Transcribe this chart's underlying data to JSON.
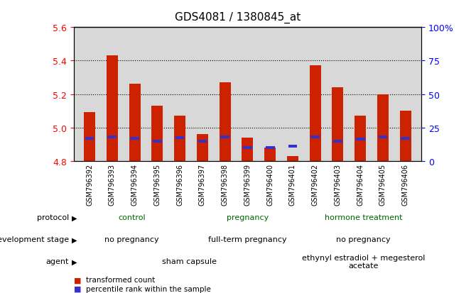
{
  "title": "GDS4081 / 1380845_at",
  "samples": [
    "GSM796392",
    "GSM796393",
    "GSM796394",
    "GSM796395",
    "GSM796396",
    "GSM796397",
    "GSM796398",
    "GSM796399",
    "GSM796400",
    "GSM796401",
    "GSM796402",
    "GSM796403",
    "GSM796404",
    "GSM796405",
    "GSM796406"
  ],
  "bar_values": [
    5.09,
    5.43,
    5.26,
    5.13,
    5.07,
    4.96,
    5.27,
    4.94,
    4.88,
    4.83,
    5.37,
    5.24,
    5.07,
    5.2,
    5.1
  ],
  "bar_base": 4.8,
  "blue_values": [
    4.925,
    4.935,
    4.925,
    4.91,
    4.93,
    4.91,
    4.935,
    4.87,
    4.87,
    4.88,
    4.935,
    4.91,
    4.92,
    4.935,
    4.925
  ],
  "blue_heights": [
    0.018,
    0.018,
    0.018,
    0.018,
    0.018,
    0.018,
    0.018,
    0.018,
    0.018,
    0.018,
    0.018,
    0.018,
    0.018,
    0.018,
    0.018
  ],
  "ylim_left": [
    4.8,
    5.6
  ],
  "ylim_right": [
    0,
    100
  ],
  "yticks_left": [
    4.8,
    5.0,
    5.2,
    5.4,
    5.6
  ],
  "yticks_right": [
    0,
    25,
    50,
    75,
    100
  ],
  "ytick_labels_right": [
    "0",
    "25",
    "50",
    "75",
    "100%"
  ],
  "bar_color": "#cc2200",
  "blue_color": "#3333cc",
  "bg_color": "#d8d8d8",
  "protocol_groups": [
    {
      "label": "control",
      "start": 0,
      "end": 5,
      "color": "#bbeeaa"
    },
    {
      "label": "pregnancy",
      "start": 5,
      "end": 10,
      "color": "#88dd88"
    },
    {
      "label": "hormone treatment",
      "start": 10,
      "end": 15,
      "color": "#44cc44"
    }
  ],
  "dev_stage_groups": [
    {
      "label": "no pregnancy",
      "start": 0,
      "end": 5,
      "color": "#ccccff"
    },
    {
      "label": "full-term pregnancy",
      "start": 5,
      "end": 10,
      "color": "#9999dd"
    },
    {
      "label": "no pregnancy",
      "start": 10,
      "end": 15,
      "color": "#ccccff"
    }
  ],
  "agent_groups": [
    {
      "label": "sham capsule",
      "start": 0,
      "end": 10,
      "color": "#ffbbbb"
    },
    {
      "label": "ethynyl estradiol + megesterol\nacetate",
      "start": 10,
      "end": 15,
      "color": "#ee8888"
    }
  ],
  "row_labels": [
    "protocol",
    "development stage",
    "agent"
  ],
  "legend_items": [
    {
      "label": "transformed count",
      "color": "#cc2200"
    },
    {
      "label": "percentile rank within the sample",
      "color": "#3333cc"
    }
  ],
  "protocol_text_color": "#006600",
  "dev_text_color": "#000000",
  "agent_text_color": "#000000"
}
